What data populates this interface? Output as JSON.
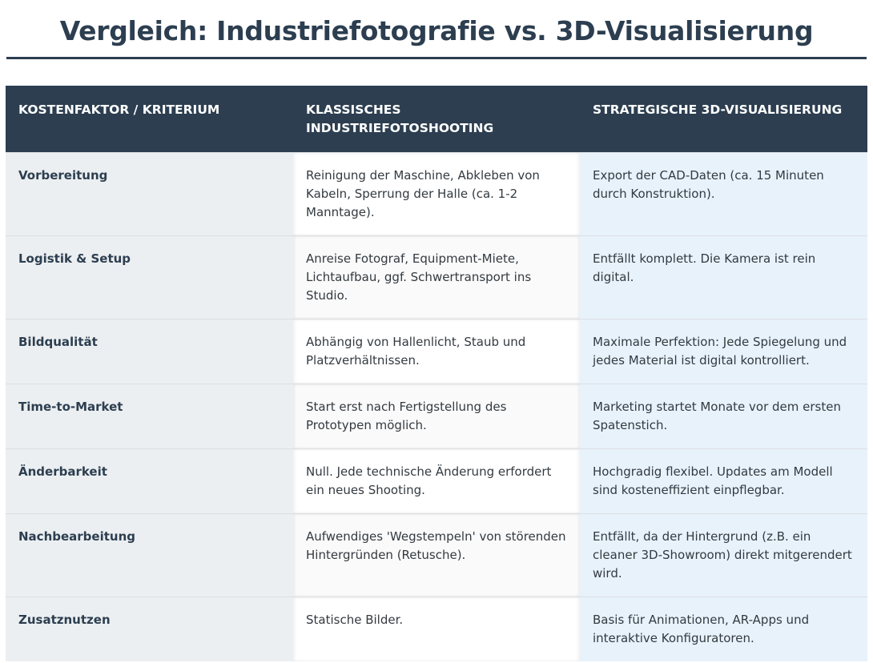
{
  "header": {
    "title": "Vergleich: Industriefotografie vs. 3D-Visualisierung"
  },
  "table": {
    "headers": [
      "KOSTENFAKTOR / KRITERIUM",
      "KLASSISCHES INDUSTRIEFOTOSHOOTING",
      "STRATEGISCHE 3D-VISUALISIERUNG"
    ],
    "rows": [
      [
        "Vorbereitung",
        "Reinigung der Maschine, Abkleben von Kabeln, Sperrung der Halle (ca. 1-2 Manntage).",
        "Export der CAD-Daten (ca. 15 Minuten durch Konstruktion)."
      ],
      [
        "Logistik & Setup",
        "Anreise Fotograf, Equipment-Miete, Lichtaufbau, ggf. Schwertransport ins Studio.",
        "Entfällt komplett. Die Kamera ist rein digital."
      ],
      [
        "Bildqualität",
        "Abhängig von Hallenlicht, Staub und Platzverhältnissen.",
        "Maximale Perfektion: Jede Spiegelung und jedes Material ist digital kontrolliert."
      ],
      [
        "Time-to-Market",
        "Start erst nach Fertigstellung des Prototypen möglich.",
        "Marketing startet Monate vor dem ersten Spatenstich."
      ],
      [
        "Änderbarkeit",
        "Null. Jede technische Änderung erfordert ein neues Shooting.",
        "Hochgradig flexibel. Updates am Modell sind kosteneffizient einpflegbar."
      ],
      [
        "Nachbearbeitung",
        "Aufwendiges 'Wegstempeln' von störenden Hintergründen (Retusche).",
        "Entfällt, da der Hintergrund (z.B. ein cleaner 3D-Showroom) direkt mitgerendert wird."
      ],
      [
        "Zusatznutzen",
        "Statische Bilder.",
        "Basis für Animationen, AR-Apps und interaktive Konfiguratoren."
      ]
    ]
  }
}
